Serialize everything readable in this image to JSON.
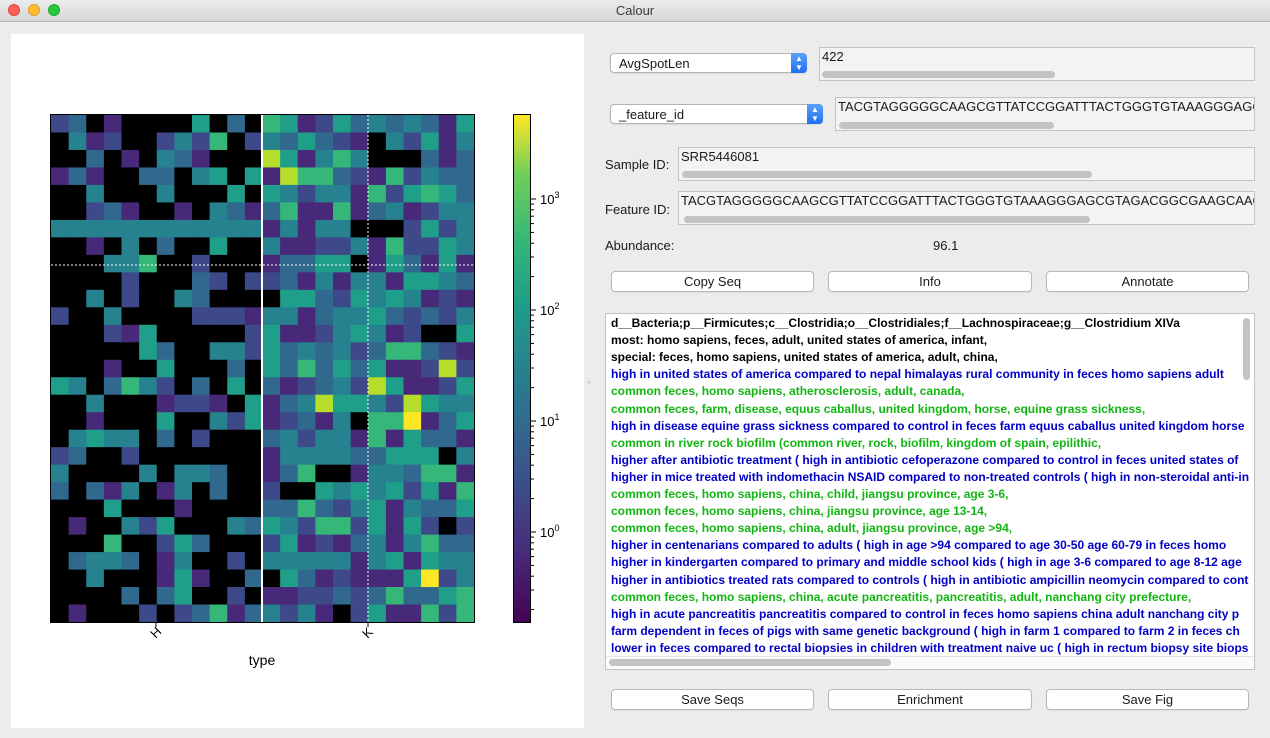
{
  "window": {
    "title": "Calour"
  },
  "plot": {
    "colorbar_ticks": [
      {
        "base": "10",
        "exp": "3"
      },
      {
        "base": "10",
        "exp": "2"
      },
      {
        "base": "10",
        "exp": "1"
      },
      {
        "base": "10",
        "exp": "0"
      }
    ],
    "x_ticks": [
      "H",
      "K"
    ],
    "x_label": "type",
    "colormap": "viridis",
    "color_scale": "log"
  },
  "controls": {
    "field1": {
      "selected": "AvgSpotLen",
      "value": "422"
    },
    "field2": {
      "selected": "_feature_id",
      "value": "TACGTAGGGGGCAAGCGTTATCCGGATTTACTGGGTGTAAAGGGAGCGTAGACGGCGAAGCAAGT"
    },
    "sample_id": {
      "label": "Sample ID:",
      "value": "SRR5446081"
    },
    "feature_id": {
      "label": "Feature ID:",
      "value": "TACGTAGGGGGCAAGCGTTATCCGGATTTACTGGGTGTAAAGGGAGCGTAGACGGCGAAGCAAGT"
    },
    "abundance": {
      "label": "Abundance:",
      "value": "96.1"
    }
  },
  "buttons_top": {
    "copy_seq": "Copy Seq",
    "info": "Info",
    "annotate": "Annotate"
  },
  "buttons_bottom": {
    "save_seqs": "Save Seqs",
    "enrichment": "Enrichment",
    "save_fig": "Save Fig"
  },
  "annotations": [
    {
      "text": "d__Bacteria;p__Firmicutes;c__Clostridia;o__Clostridiales;f__Lachnospiraceae;g__Clostridium XIVa",
      "color": "#000000"
    },
    {
      "text": "most: homo sapiens, feces, adult, united states of america, infant,",
      "color": "#000000"
    },
    {
      "text": "special: feces, homo sapiens, united states of america, adult, china,",
      "color": "#000000"
    },
    {
      "text": " high in united states of america  compared to nepal himalayas rural community  in feces homo sapiens adult",
      "color": "#0000c8"
    },
    {
      "text": "common  feces, homo sapiens, atherosclerosis, adult, canada,",
      "color": "#12b512"
    },
    {
      "text": "common  feces, farm, disease, equus caballus, united kingdom, horse, equine grass sickness,",
      "color": "#12b512"
    },
    {
      "text": " high in disease equine grass sickness  compared to control  in feces farm equus caballus united kingdom horse",
      "color": "#0000c8"
    },
    {
      "text": "common in river rock biofilm (common  river, rock, biofilm, kingdom of spain, epilithic,",
      "color": "#12b512"
    },
    {
      "text": "higher after antibiotic treatment ( high in antibiotic cefoperazone  compared to control  in feces united states of",
      "color": "#0000c8"
    },
    {
      "text": "higher in mice treated with indomethacin NSAID compared to non-treated controls ( high in non-steroidal anti-in",
      "color": "#0000c8"
    },
    {
      "text": "common  feces, homo sapiens, china, child, jiangsu province, age 3-6,",
      "color": "#12b512"
    },
    {
      "text": "common  feces, homo sapiens, china, jiangsu province, age 13-14,",
      "color": "#12b512"
    },
    {
      "text": "common  feces, homo sapiens, china, adult, jiangsu province, age >94,",
      "color": "#12b512"
    },
    {
      "text": "higher in centenarians compared to adults ( high in age >94  compared to age 30-50 age 60-79  in feces homo",
      "color": "#0000c8"
    },
    {
      "text": "higher in kindergarten compared to primary and middle school kids ( high in age 3-6  compared to age 8-12 age",
      "color": "#0000c8"
    },
    {
      "text": "higher in antibiotics treated rats compared to controls ( high in antibiotic ampicillin neomycin  compared to cont",
      "color": "#0000c8"
    },
    {
      "text": "common  feces, homo sapiens, china, acute pancreatitis, pancreatitis, adult, nanchang city prefecture,",
      "color": "#12b512"
    },
    {
      "text": " high in acute pancreatitis pancreatitis  compared to control  in feces homo sapiens china adult nanchang city p",
      "color": "#0000c8"
    },
    {
      "text": "farm dependent in feces of pigs with same genetic background ( high in farm 1  compared to farm 2  in feces ch",
      "color": "#0000c8"
    },
    {
      "text": "lower in feces compared to rectal biopsies in children with treatment naive uc  ( high in rectum biopsy site biops",
      "color": "#0000c8"
    }
  ]
}
